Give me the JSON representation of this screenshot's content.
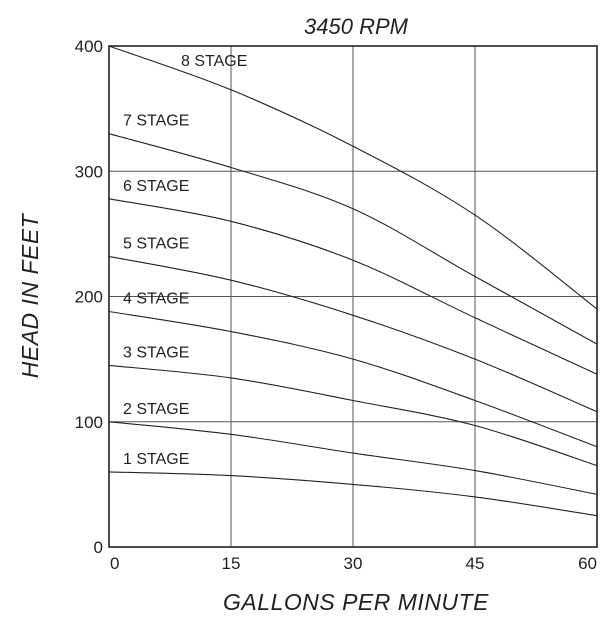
{
  "chart_data": {
    "type": "line",
    "title": "3450 RPM",
    "xlabel": "GALLONS PER MINUTE",
    "ylabel": "HEAD IN FEET",
    "xlim": [
      0,
      60
    ],
    "ylim": [
      0,
      400
    ],
    "xticks": [
      0,
      15,
      30,
      45,
      60
    ],
    "yticks": [
      0,
      100,
      200,
      300,
      400
    ],
    "xtick_labels": [
      "0",
      "15",
      "30",
      "45",
      "60"
    ],
    "ytick_labels": [
      "0",
      "100",
      "200",
      "300",
      "400"
    ],
    "grid": true,
    "legend": "none",
    "x": [
      0,
      15,
      30,
      45,
      60
    ],
    "series": [
      {
        "name": "1 STAGE",
        "values": [
          60,
          57,
          50,
          40,
          25
        ]
      },
      {
        "name": "2 STAGE",
        "values": [
          100,
          90,
          75,
          61,
          42
        ]
      },
      {
        "name": "3 STAGE",
        "values": [
          145,
          135,
          117,
          97,
          65
        ]
      },
      {
        "name": "4 STAGE",
        "values": [
          188,
          172,
          150,
          117,
          80
        ]
      },
      {
        "name": "5 STAGE",
        "values": [
          232,
          213,
          185,
          150,
          108
        ]
      },
      {
        "name": "6 STAGE",
        "values": [
          278,
          260,
          229,
          183,
          138
        ]
      },
      {
        "name": "7 STAGE",
        "values": [
          330,
          303,
          270,
          216,
          162
        ]
      },
      {
        "name": "8 STAGE",
        "values": [
          400,
          365,
          320,
          265,
          190
        ]
      }
    ]
  }
}
